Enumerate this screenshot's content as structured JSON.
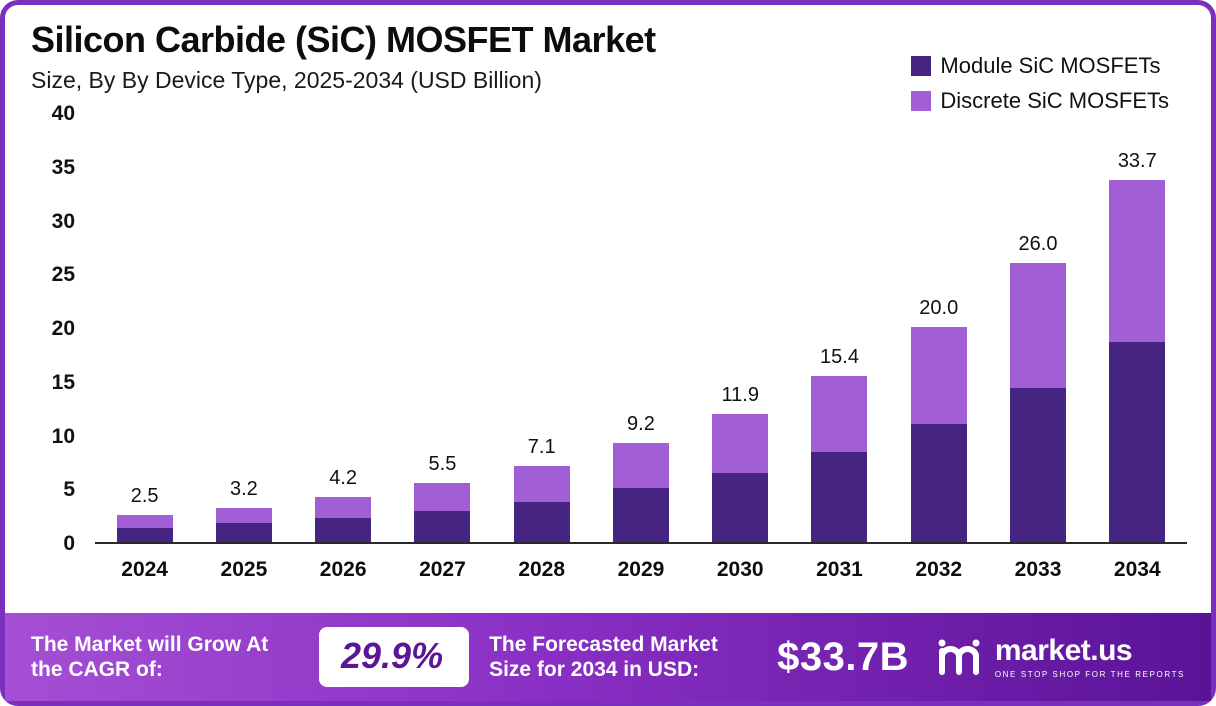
{
  "header": {
    "title": "Silicon Carbide (SiC) MOSFET Market",
    "subtitle": "Size, By By Device Type, 2025-2034 (USD Billion)"
  },
  "legend": [
    {
      "label": "Module SiC MOSFETs",
      "color": "#452581"
    },
    {
      "label": "Discrete SiC MOSFETs",
      "color": "#a15ed5"
    }
  ],
  "chart_data": {
    "type": "bar",
    "stacked": true,
    "title": "Silicon Carbide (SiC) MOSFET Market Size, By Device Type, 2025-2034 (USD Billion)",
    "categories": [
      "2024",
      "2025",
      "2026",
      "2027",
      "2028",
      "2029",
      "2030",
      "2031",
      "2032",
      "2033",
      "2034"
    ],
    "series": [
      {
        "name": "Module SiC MOSFETs",
        "color": "#452581",
        "values": [
          1.3,
          1.8,
          2.2,
          2.9,
          3.7,
          5.0,
          6.4,
          8.4,
          11.0,
          14.3,
          18.6
        ]
      },
      {
        "name": "Discrete SiC MOSFETs",
        "color": "#a15ed5",
        "values": [
          1.2,
          1.4,
          2.0,
          2.6,
          3.4,
          4.2,
          5.5,
          7.0,
          9.0,
          11.7,
          15.1
        ]
      }
    ],
    "totals": [
      2.5,
      3.2,
      4.2,
      5.5,
      7.1,
      9.2,
      11.9,
      15.4,
      20.0,
      26.0,
      33.7
    ],
    "total_labels": [
      "2.5",
      "3.2",
      "4.2",
      "5.5",
      "7.1",
      "9.2",
      "11.9",
      "15.4",
      "20.0",
      "26.0",
      "33.7"
    ],
    "xlabel": "",
    "ylabel": "",
    "ylim": [
      0,
      40
    ],
    "yticks": [
      0,
      5,
      10,
      15,
      20,
      25,
      30,
      35,
      40
    ],
    "grid": false,
    "legend_position": "top-right"
  },
  "footer": {
    "cagr_label": "The Market will Grow At the CAGR of:",
    "cagr_value": "29.9%",
    "forecast_label": "The Forecasted Market Size for 2034 in USD:",
    "forecast_value": "$33.7B",
    "brand": "market.us",
    "brand_tagline": "ONE STOP SHOP FOR THE REPORTS"
  },
  "colors": {
    "border": "#7b2fbe",
    "module_series": "#452581",
    "discrete_series": "#a15ed5",
    "banner_gradient_start": "#a44fd4",
    "banner_gradient_end": "#5a1397",
    "cagr_pill_text": "#5b1694"
  }
}
